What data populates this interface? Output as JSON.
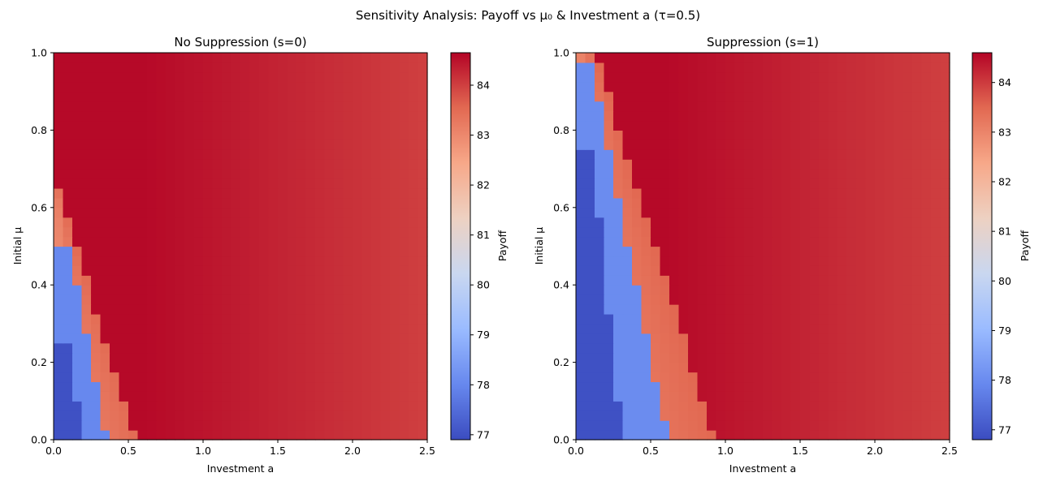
{
  "figure": {
    "suptitle": "Sensitivity Analysis: Payoff vs μ₀ & Investment a (τ=0.5)"
  },
  "colormap": {
    "name": "coolwarm",
    "stops": [
      "#3b4cc0",
      "#6788ee",
      "#9abbff",
      "#c9d7f0",
      "#edd1c2",
      "#f7a889",
      "#e26952",
      "#b40426"
    ]
  },
  "chart_data": [
    {
      "type": "heatmap",
      "title": "No Suppression (s=0)",
      "xlabel": "Investment a",
      "ylabel": "Initial μ",
      "xlim": [
        0,
        2.5
      ],
      "ylim": [
        0,
        1.0
      ],
      "xticks": [
        "0.0",
        "0.5",
        "1.0",
        "1.5",
        "2.0",
        "2.5"
      ],
      "yticks": [
        "0.0",
        "0.2",
        "0.4",
        "0.6",
        "0.8",
        "1.0"
      ],
      "grid": false,
      "x_cells": 40,
      "y_cells": 40,
      "boundary_a_at_mu0": 0.55,
      "boundary_slope": 0.8,
      "levels": [
        {
          "name": "lowest",
          "value": 77.0,
          "upper_mu": 0.25
        },
        {
          "name": "low",
          "value": 78.0,
          "upper_mu": 0.5
        },
        {
          "name": "mid-high",
          "value": 83.5,
          "upper_mu": 0.71
        },
        {
          "name": "peak",
          "value": 84.6,
          "upper_mu": 1.0
        }
      ],
      "peak_decay_per_a": 0.32,
      "colorbar": {
        "label": "Payoff",
        "vmin": 76.9,
        "vmax": 84.65,
        "ticks": [
          77,
          78,
          79,
          80,
          81,
          82,
          83,
          84
        ]
      }
    },
    {
      "type": "heatmap",
      "title": "Suppression (s=1)",
      "xlabel": "Investment a",
      "ylabel": "Initial μ",
      "xlim": [
        0,
        2.5
      ],
      "ylim": [
        0,
        1.0
      ],
      "xticks": [
        "0.0",
        "0.5",
        "1.0",
        "1.5",
        "2.0",
        "2.5"
      ],
      "yticks": [
        "0.0",
        "0.2",
        "0.4",
        "0.6",
        "0.8",
        "1.0"
      ],
      "grid": false,
      "x_cells": 40,
      "y_cells": 40,
      "boundary_a_at_mu0": 0.93,
      "boundary_slope": 0.8,
      "levels": [
        {
          "name": "lowest",
          "value": 76.9,
          "upper_mu": 0.74
        },
        {
          "name": "low",
          "value": 78.0,
          "upper_mu": 0.98
        },
        {
          "name": "mid-high",
          "value": 83.5,
          "upper_mu": 1.0
        },
        {
          "name": "peak",
          "value": 84.55,
          "upper_mu": 1.0
        }
      ],
      "peak_decay_per_a": 0.32,
      "colorbar": {
        "label": "Payoff",
        "vmin": 76.8,
        "vmax": 84.6,
        "ticks": [
          77,
          78,
          79,
          80,
          81,
          82,
          83,
          84
        ]
      }
    }
  ]
}
